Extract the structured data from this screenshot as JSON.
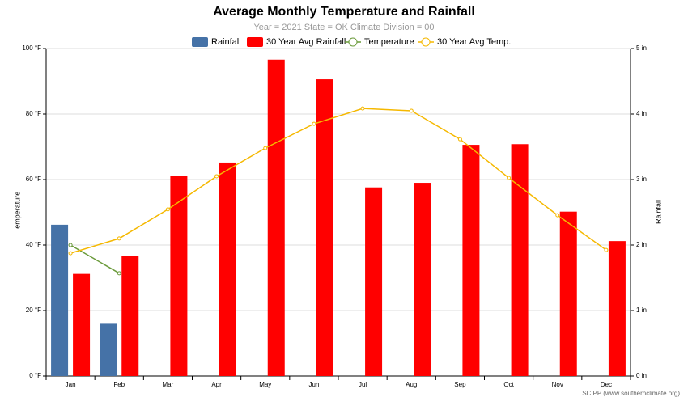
{
  "chart_data": {
    "type": "bar",
    "title": "Average Monthly Temperature and Rainfall",
    "subtitle": "Year = 2021 State = OK Climate Division = 00",
    "y_label": "Temperature",
    "y2_label": "Rainfall",
    "credit": "SCIPP (www.southernclimate.org)",
    "categories": [
      "Jan",
      "Feb",
      "Mar",
      "Apr",
      "May",
      "Jun",
      "Jul",
      "Aug",
      "Sep",
      "Oct",
      "Nov",
      "Dec"
    ],
    "ylim": [
      0,
      100
    ],
    "yticks": [
      {
        "value": 0,
        "label": "0 °F"
      },
      {
        "value": 20,
        "label": "20 °F"
      },
      {
        "value": 40,
        "label": "40 °F"
      },
      {
        "value": 60,
        "label": "60 °F"
      },
      {
        "value": 80,
        "label": "80 °F"
      },
      {
        "value": 100,
        "label": "100 °F"
      }
    ],
    "y2lim": [
      0,
      5
    ],
    "y2ticks": [
      {
        "value": 0,
        "label": "0 in"
      },
      {
        "value": 1,
        "label": "1 in"
      },
      {
        "value": 2,
        "label": "2 in"
      },
      {
        "value": 3,
        "label": "3 in"
      },
      {
        "value": 4,
        "label": "4 in"
      },
      {
        "value": 5,
        "label": "5 in"
      }
    ],
    "grid": true,
    "series": [
      {
        "name": "Rainfall",
        "type": "bar",
        "axis": "y2",
        "color": "#4572a7",
        "values": [
          2.31,
          0.81,
          null,
          null,
          null,
          null,
          null,
          null,
          null,
          null,
          null,
          null
        ]
      },
      {
        "name": "30 Year Avg Rainfall",
        "type": "bar",
        "axis": "y2",
        "color": "#ff0000",
        "values": [
          1.56,
          1.83,
          3.05,
          3.26,
          4.83,
          4.53,
          2.88,
          2.95,
          3.53,
          3.54,
          2.51,
          2.06
        ]
      },
      {
        "name": "Temperature",
        "type": "line",
        "color": "#6a9a3a",
        "values": [
          40.0,
          31.4,
          null,
          null,
          null,
          null,
          null,
          null,
          null,
          null,
          null,
          null
        ]
      },
      {
        "name": "30 Year Avg Temp.",
        "type": "line",
        "color": "#f5b800",
        "values": [
          37.5,
          42.0,
          50.9,
          61.0,
          69.6,
          77.0,
          81.7,
          81.0,
          72.3,
          60.5,
          49.1,
          38.5
        ]
      }
    ]
  }
}
